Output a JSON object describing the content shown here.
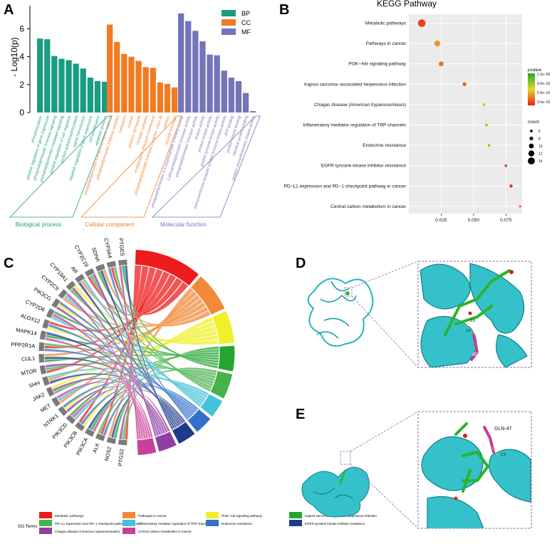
{
  "panels": {
    "a": "A",
    "b": "B",
    "c": "C",
    "d": "D",
    "e": "E"
  },
  "chart_data": [
    {
      "type": "bar",
      "title": "",
      "ylabel": "- Log10(p)",
      "ylim": [
        0,
        7.2
      ],
      "yticks": [
        0,
        2,
        4,
        6
      ],
      "legend": {
        "position": "top-right",
        "items": [
          {
            "name": "BP",
            "color": "#1a9c82"
          },
          {
            "name": "CC",
            "color": "#f07b22"
          },
          {
            "name": "MF",
            "color": "#7374b9"
          }
        ]
      },
      "groups": [
        {
          "name": "Biological process",
          "key": "BP",
          "color": "#1a9c82",
          "categories": [
            "phosphorylation",
            "positive regulation of gene expression",
            "phosphatidylinositol 3-kinase signaling",
            "phosphatidylinositol-mediated signaling",
            "positive regulation of cell migration",
            "protein autophosphorylation",
            "signal transduction",
            "negative regulation of gene expression",
            "cell proliferation",
            "apoptotic process"
          ],
          "values": [
            5.3,
            5.25,
            4.05,
            3.85,
            3.75,
            3.5,
            3.15,
            2.5,
            2.25,
            2.2
          ]
        },
        {
          "name": "Cellular component",
          "key": "CC",
          "color": "#f07b22",
          "categories": [
            "phosphatidylinositol 3-kinase complex, class IA",
            "phosphatidylinositol 3-kinase complex",
            "cytoplasm",
            "cytosol",
            "plasma membrane",
            "receptor complex",
            "endoplasmic reticulum membrane",
            "phosphatidylinositol 3-kinase complex, class IB",
            "nucleus",
            "nuclear envelope"
          ],
          "values": [
            6.3,
            5.05,
            4.2,
            4.0,
            3.7,
            3.25,
            3.2,
            2.15,
            2.05,
            1.8
          ]
        },
        {
          "name": "Molecular function",
          "key": "MF",
          "color": "#7374b9",
          "categories": [
            "phosphatidylinositol-4,5-bisphosphate 3-kinase activity",
            "1-phosphatidylinositol-3-kinase activity",
            "phosphatidylinositol 3-kinase activity",
            "kinase activity",
            "protein kinase activity",
            "protein tyrosine kinase activity",
            "transmembrane receptor protein tyrosine kinase activity",
            "ATP binding",
            "protein kinase binding",
            "identical protein binding",
            "protein serine/threonine kinase activity"
          ],
          "values": [
            7.1,
            6.55,
            5.85,
            5.1,
            4.15,
            4.1,
            3.0,
            2.5,
            2.25,
            1.4,
            0.1
          ]
        }
      ]
    },
    {
      "type": "scatter",
      "title": "KEGG Pathway",
      "xlim": [
        0.0,
        0.0875
      ],
      "xticks": [
        0.025,
        0.05,
        0.075
      ],
      "xtick_labels": [
        "0.025",
        "0.050",
        "0.075"
      ],
      "categories": [
        "Metabolic pathways",
        "Pathways in cancer",
        "PI3K−Akt signaling pathway",
        "Kaposi sarcoma−associated herpesvirus infection",
        "Chagas disease (American trypanosomiasis)",
        "Inflammatory mediator regulation of TRP channels",
        "Endocrine resistance",
        "EGFR tyrosine kinase inhibitor resistance",
        "PD−L1 expression and PD−1 checkpoint pathway in cancer",
        "Central carbon metabolism in cancer"
      ],
      "x": [
        0.01,
        0.022,
        0.025,
        0.043,
        0.058,
        0.06,
        0.062,
        0.075,
        0.079,
        0.086
      ],
      "count": [
        15,
        12,
        10,
        8,
        6,
        6,
        6,
        6,
        7,
        5
      ],
      "pvalue": [
        1e-10,
        4e-10,
        3e-10,
        2e-10,
        7.5e-10,
        8e-10,
        8.5e-10,
        1e-10,
        5e-11,
        1.5e-10
      ],
      "colorbar": {
        "title": "pvalue",
        "labels": [
          "1.2e−09",
          "9.0e−10",
          "6.0e−10",
          "3.0e−10"
        ],
        "colors": [
          "#22aa22",
          "#e3d62a",
          "#f02010"
        ]
      },
      "size_legend": {
        "title": "count",
        "labels": [
          "6",
          "8",
          "10",
          "12",
          "14"
        ]
      }
    },
    {
      "type": "chord",
      "legend_title": "GO Terms",
      "terms": [
        {
          "name": "Metabolic pathways",
          "color": "#ee1c1c"
        },
        {
          "name": "Pathways in cancer",
          "color": "#f28a3b"
        },
        {
          "name": "PI3K−Akt signaling pathway",
          "color": "#f0ef2a"
        },
        {
          "name": "Kaposi sarcoma−associated herpesvirus infection",
          "color": "#23a52f"
        },
        {
          "name": "PD−L1 expression and PD−1 checkpoint pathway in cancer",
          "color": "#46b24c"
        },
        {
          "name": "Inflammatory mediator regulation of TRP channels",
          "color": "#43c3d9"
        },
        {
          "name": "Endocrine resistance",
          "color": "#3172c8"
        },
        {
          "name": "EGFR tyrosine kinase inhibitor resistance",
          "color": "#1e3a8a"
        },
        {
          "name": "Chagas disease (American trypanosomiasis)",
          "color": "#8e3fa0"
        },
        {
          "name": "Central carbon metabolism in cancer",
          "color": "#c9409a"
        }
      ],
      "genes": [
        "PTGS2",
        "NOS2",
        "ALK",
        "PIK3CA",
        "PIK3CB",
        "PIK3CD",
        "NTRK1",
        "MET",
        "JAK2",
        "SHH",
        "MTOR",
        "CUL1",
        "PPP2R1A",
        "MAPK14",
        "ALOX12",
        "CYP2D6",
        "PIK3CG",
        "CYP2C9",
        "CYP19A1",
        "AR",
        "CYP2C19",
        "SDNA",
        "CYP3A4",
        "PTGES"
      ],
      "term_weights": [
        10,
        6,
        5,
        4,
        4,
        3,
        3,
        3,
        3,
        3
      ]
    }
  ],
  "docking": {
    "d_residue": "ASN-170",
    "e_residue": "GLN-47",
    "d_distances": [
      "2.8",
      "2.5"
    ],
    "e_distances": [
      "2.9"
    ]
  }
}
